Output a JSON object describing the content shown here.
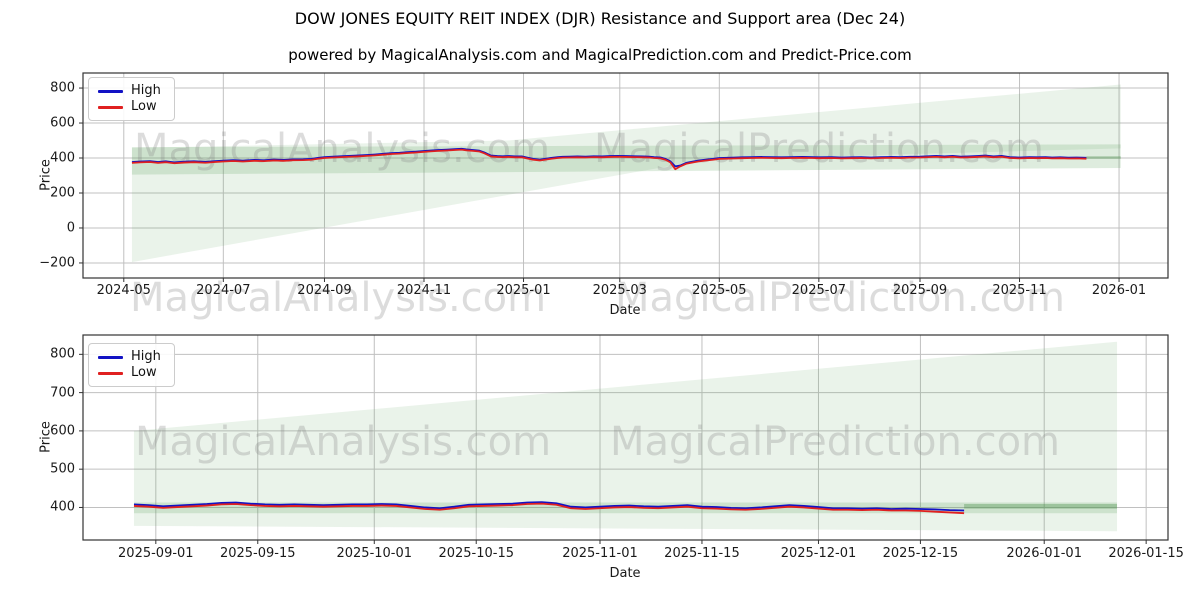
{
  "title": "DOW JONES EQUITY REIT INDEX (DJR) Resistance and Support area (Dec 24)",
  "subtitle": "powered by MagicalAnalysis.com and MagicalPrediction.com and Predict-Price.com",
  "watermarks": {
    "left_text": "MagicalAnalysis.com",
    "right_text": "MagicalPrediction.com"
  },
  "legend": {
    "high_label": "High",
    "low_label": "Low"
  },
  "colors": {
    "high": "#1212c4",
    "low": "#e02020",
    "cone": "rgba(90,160,90,0.13)",
    "band": "rgba(90,160,90,0.20)",
    "stripe": "rgba(70,140,70,0.35)",
    "grid": "#c0c0c0",
    "frame": "#333333",
    "watermark": "rgba(128,128,128,0.28)"
  },
  "chart_data": [
    {
      "type": "line",
      "title": "",
      "xlabel": "Date",
      "ylabel": "Price",
      "xlim": [
        "2024-04-06",
        "2026-01-31"
      ],
      "ylim": [
        -286,
        886
      ],
      "grid": true,
      "legend_position": "upper left",
      "yticks": [
        {
          "v": -200,
          "label": "−200"
        },
        {
          "v": 0,
          "label": "0"
        },
        {
          "v": 200,
          "label": "200"
        },
        {
          "v": 400,
          "label": "400"
        },
        {
          "v": 600,
          "label": "600"
        },
        {
          "v": 800,
          "label": "800"
        }
      ],
      "xticks": [
        {
          "d": "2024-05-01",
          "label": "2024-05"
        },
        {
          "d": "2024-07-01",
          "label": "2024-07"
        },
        {
          "d": "2024-09-01",
          "label": "2024-09"
        },
        {
          "d": "2024-11-01",
          "label": "2024-11"
        },
        {
          "d": "2025-01-01",
          "label": "2025-01"
        },
        {
          "d": "2025-03-01",
          "label": "2025-03"
        },
        {
          "d": "2025-05-01",
          "label": "2025-05"
        },
        {
          "d": "2025-07-01",
          "label": "2025-07"
        },
        {
          "d": "2025-09-01",
          "label": "2025-09"
        },
        {
          "d": "2025-11-01",
          "label": "2025-11"
        },
        {
          "d": "2026-01-01",
          "label": "2026-01"
        }
      ],
      "series": {
        "dates": [
          "2024-05-06",
          "2024-05-11",
          "2024-05-17",
          "2024-05-22",
          "2024-05-27",
          "2024-06-01",
          "2024-06-07",
          "2024-06-13",
          "2024-06-20",
          "2024-06-26",
          "2024-07-01",
          "2024-07-07",
          "2024-07-13",
          "2024-07-20",
          "2024-07-26",
          "2024-08-01",
          "2024-08-07",
          "2024-08-13",
          "2024-08-19",
          "2024-08-24",
          "2024-08-28",
          "2024-09-01",
          "2024-09-05",
          "2024-09-11",
          "2024-09-16",
          "2024-09-21",
          "2024-09-27",
          "2024-10-02",
          "2024-10-07",
          "2024-10-12",
          "2024-10-17",
          "2024-10-21",
          "2024-10-26",
          "2024-11-01",
          "2024-11-05",
          "2024-11-10",
          "2024-11-15",
          "2024-11-20",
          "2024-11-24",
          "2024-11-27",
          "2024-12-01",
          "2024-12-05",
          "2024-12-08",
          "2024-12-12",
          "2024-12-16",
          "2024-12-19",
          "2024-12-23",
          "2024-12-27",
          "2024-12-31",
          "2025-01-03",
          "2025-01-07",
          "2025-01-11",
          "2025-01-14",
          "2025-01-18",
          "2025-01-22",
          "2025-01-25",
          "2025-01-29",
          "2025-02-03",
          "2025-02-08",
          "2025-02-13",
          "2025-02-18",
          "2025-02-23",
          "2025-02-28",
          "2025-03-05",
          "2025-03-10",
          "2025-03-15",
          "2025-03-19",
          "2025-03-22",
          "2025-03-26",
          "2025-03-29",
          "2025-04-01",
          "2025-04-04",
          "2025-04-07",
          "2025-04-11",
          "2025-04-15",
          "2025-04-18",
          "2025-04-22",
          "2025-04-27",
          "2025-05-01",
          "2025-05-09",
          "2025-05-15",
          "2025-05-21",
          "2025-05-27",
          "2025-06-02",
          "2025-06-08",
          "2025-06-14",
          "2025-06-21",
          "2025-06-27",
          "2025-07-01",
          "2025-07-09",
          "2025-07-15",
          "2025-07-21",
          "2025-07-27",
          "2025-08-02",
          "2025-08-08",
          "2025-08-14",
          "2025-08-20",
          "2025-08-26",
          "2025-09-01",
          "2025-09-06",
          "2025-09-11",
          "2025-09-16",
          "2025-09-21",
          "2025-09-26",
          "2025-10-01",
          "2025-10-06",
          "2025-10-11",
          "2025-10-16",
          "2025-10-21",
          "2025-10-26",
          "2025-11-01",
          "2025-11-07",
          "2025-11-12",
          "2025-11-17",
          "2025-11-21",
          "2025-11-26",
          "2025-12-01",
          "2025-12-06",
          "2025-12-12"
        ],
        "high": [
          377,
          380,
          382,
          377,
          381,
          375,
          379,
          381,
          378,
          382,
          385,
          388,
          385,
          389,
          387,
          391,
          389,
          392,
          393,
          395,
          401,
          405,
          407,
          410,
          412,
          414,
          417,
          420,
          424,
          428,
          430,
          433,
          436,
          440,
          443,
          446,
          448,
          451,
          453,
          449,
          446,
          442,
          432,
          414,
          411,
          410,
          411,
          409,
          409,
          403,
          395,
          391,
          395,
          401,
          405,
          407,
          408,
          409,
          408,
          410,
          409,
          411,
          412,
          411,
          410,
          409,
          408,
          405,
          403,
          395,
          381,
          352,
          357,
          373,
          380,
          385,
          390,
          395,
          400,
          402,
          404,
          405,
          406,
          405,
          404,
          405,
          406,
          405,
          404,
          405,
          403,
          404,
          405,
          403,
          405,
          406,
          405,
          407,
          408,
          410,
          412,
          409,
          412,
          408,
          409,
          411,
          414,
          409,
          412,
          405,
          403,
          405,
          404,
          405,
          403,
          404,
          402,
          403,
          401
        ],
        "low": [
          372,
          375,
          377,
          372,
          376,
          370,
          374,
          376,
          373,
          377,
          380,
          383,
          380,
          384,
          382,
          386,
          384,
          387,
          388,
          390,
          396,
          400,
          402,
          405,
          407,
          409,
          412,
          415,
          419,
          423,
          425,
          428,
          431,
          435,
          438,
          441,
          443,
          446,
          448,
          444,
          441,
          437,
          427,
          409,
          406,
          405,
          406,
          404,
          404,
          398,
          390,
          386,
          390,
          396,
          400,
          402,
          403,
          404,
          403,
          405,
          404,
          406,
          407,
          406,
          405,
          404,
          403,
          400,
          398,
          390,
          375,
          336,
          352,
          368,
          375,
          380,
          385,
          390,
          395,
          397,
          399,
          400,
          401,
          400,
          399,
          400,
          401,
          400,
          399,
          400,
          398,
          399,
          400,
          398,
          400,
          401,
          400,
          402,
          403,
          405,
          407,
          404,
          407,
          403,
          404,
          406,
          409,
          404,
          407,
          400,
          398,
          400,
          399,
          400,
          398,
          399,
          397,
          398,
          396
        ]
      },
      "areas": [
        {
          "name": "cone",
          "color_key": "cone",
          "top": [
            [
              "2024-05-06",
              458
            ],
            [
              "2024-12-22",
              500
            ],
            [
              "2026-01-02",
              820
            ]
          ],
          "bottom": [
            [
              "2024-05-06",
              -195
            ],
            [
              "2025-04-22",
              390
            ],
            [
              "2026-01-02",
              455
            ]
          ]
        },
        {
          "name": "band",
          "color_key": "band",
          "top": [
            [
              "2024-05-06",
              462
            ],
            [
              "2026-01-02",
              478
            ]
          ],
          "bottom": [
            [
              "2024-05-06",
              305
            ],
            [
              "2026-01-02",
              343
            ]
          ]
        },
        {
          "name": "stripe",
          "color_key": "stripe",
          "top": [
            [
              "2025-12-12",
              410
            ],
            [
              "2026-01-02",
              410
            ]
          ],
          "bottom": [
            [
              "2025-12-12",
              396
            ],
            [
              "2026-01-02",
              396
            ]
          ]
        }
      ]
    },
    {
      "type": "line",
      "title": "",
      "xlabel": "Date",
      "ylabel": "Price",
      "xlim": [
        "2025-08-22",
        "2026-01-18"
      ],
      "ylim": [
        315,
        850.5
      ],
      "grid": true,
      "legend_position": "upper left",
      "yticks": [
        {
          "v": 400,
          "label": "400"
        },
        {
          "v": 500,
          "label": "500"
        },
        {
          "v": 600,
          "label": "600"
        },
        {
          "v": 700,
          "label": "700"
        },
        {
          "v": 800,
          "label": "800"
        }
      ],
      "xticks": [
        {
          "d": "2025-09-01",
          "label": "2025-09-01"
        },
        {
          "d": "2025-09-15",
          "label": "2025-09-15"
        },
        {
          "d": "2025-10-01",
          "label": "2025-10-01"
        },
        {
          "d": "2025-10-15",
          "label": "2025-10-15"
        },
        {
          "d": "2025-11-01",
          "label": "2025-11-01"
        },
        {
          "d": "2025-11-15",
          "label": "2025-11-15"
        },
        {
          "d": "2025-12-01",
          "label": "2025-12-01"
        },
        {
          "d": "2025-12-15",
          "label": "2025-12-15"
        },
        {
          "d": "2026-01-01",
          "label": "2026-01-01"
        },
        {
          "d": "2026-01-15",
          "label": "2026-01-15"
        }
      ],
      "series": {
        "dates": [
          "2025-08-29",
          "2025-08-31",
          "2025-09-02",
          "2025-09-04",
          "2025-09-06",
          "2025-09-08",
          "2025-09-10",
          "2025-09-12",
          "2025-09-14",
          "2025-09-16",
          "2025-09-18",
          "2025-09-20",
          "2025-09-22",
          "2025-09-24",
          "2025-09-26",
          "2025-09-28",
          "2025-09-30",
          "2025-10-02",
          "2025-10-04",
          "2025-10-06",
          "2025-10-08",
          "2025-10-10",
          "2025-10-12",
          "2025-10-14",
          "2025-10-16",
          "2025-10-18",
          "2025-10-20",
          "2025-10-22",
          "2025-10-24",
          "2025-10-26",
          "2025-10-28",
          "2025-10-30",
          "2025-11-01",
          "2025-11-03",
          "2025-11-05",
          "2025-11-07",
          "2025-11-09",
          "2025-11-11",
          "2025-11-13",
          "2025-11-15",
          "2025-11-17",
          "2025-11-19",
          "2025-11-21",
          "2025-11-23",
          "2025-11-25",
          "2025-11-27",
          "2025-11-29",
          "2025-12-01",
          "2025-12-03",
          "2025-12-05",
          "2025-12-07",
          "2025-12-09",
          "2025-12-11",
          "2025-12-13",
          "2025-12-15",
          "2025-12-17",
          "2025-12-19",
          "2025-12-21"
        ],
        "high": [
          408,
          406,
          403,
          405,
          407,
          409,
          412,
          413,
          410,
          408,
          407,
          408,
          407,
          406,
          407,
          408,
          408,
          409,
          408,
          404,
          400,
          398,
          402,
          407,
          408,
          409,
          410,
          413,
          414,
          411,
          402,
          400,
          402,
          404,
          405,
          403,
          402,
          404,
          406,
          402,
          401,
          399,
          398,
          400,
          403,
          406,
          404,
          401,
          398,
          398,
          397,
          398,
          396,
          397,
          396,
          395,
          393,
          392
        ],
        "low": [
          404,
          402,
          399,
          401,
          403,
          405,
          408,
          409,
          406,
          404,
          403,
          404,
          403,
          402,
          403,
          404,
          404,
          405,
          404,
          400,
          396,
          394,
          398,
          403,
          404,
          405,
          406,
          409,
          410,
          407,
          398,
          396,
          398,
          400,
          401,
          399,
          398,
          400,
          402,
          398,
          397,
          395,
          394,
          396,
          399,
          402,
          400,
          397,
          394,
          394,
          393,
          394,
          392,
          392,
          391,
          389,
          387,
          385
        ]
      },
      "areas": [
        {
          "name": "cone",
          "color_key": "cone",
          "top": [
            [
              "2025-08-29",
              600
            ],
            [
              "2026-01-11",
              833
            ]
          ],
          "bottom": [
            [
              "2025-08-29",
              352
            ],
            [
              "2026-01-11",
              338
            ]
          ]
        },
        {
          "name": "band",
          "color_key": "band",
          "top": [
            [
              "2025-08-29",
              413
            ],
            [
              "2026-01-11",
              413
            ]
          ],
          "bottom": [
            [
              "2025-08-29",
              385
            ],
            [
              "2026-01-11",
              385
            ]
          ]
        },
        {
          "name": "stripe",
          "color_key": "stripe",
          "top": [
            [
              "2025-12-21",
              409
            ],
            [
              "2026-01-11",
              409
            ]
          ],
          "bottom": [
            [
              "2025-12-21",
              397
            ],
            [
              "2026-01-11",
              397
            ]
          ]
        }
      ]
    }
  ]
}
